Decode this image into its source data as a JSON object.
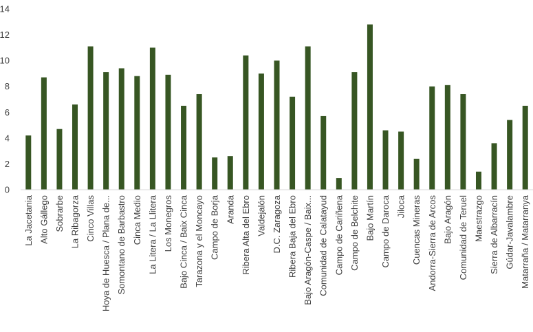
{
  "chart_data": {
    "type": "bar",
    "categories": [
      "La Jacetania",
      "Alto Gállego",
      "Sobrarbe",
      "La Ribagorza",
      "Cinco Villas",
      "Hoya de Huesca / Plana de...",
      "Somontano de Barbastro",
      "Cinca Medio",
      "La Litera / La Llitera",
      "Los Monegros",
      "Bajo Cinca / Baix Cinca",
      "Tarazona y el Moncayo",
      "Campo de Borja",
      "Aranda",
      "Ribera Alta del Ebro",
      "Valdejalón",
      "D.C. Zaragoza",
      "Ribera Baja del Ebro",
      "Bajo Aragón-Caspe / Baix...",
      "Comunidad de Calatayud",
      "Campo de Cariñena",
      "Campo de Belchite",
      "Bajo Martín",
      "Campo de Daroca",
      "Jiloca",
      "Cuencas Mineras",
      "Andorra-Sierra de Arcos",
      "Bajo Aragón",
      "Comunidad de Teruel",
      "Maestrazgo",
      "Sierra de Albarracín",
      "Gúdar-Javalambre",
      "Matarraña / Matarranya"
    ],
    "values": [
      4.2,
      8.7,
      4.7,
      6.6,
      11.1,
      9.1,
      9.4,
      8.8,
      11.0,
      8.9,
      6.5,
      7.4,
      2.5,
      2.6,
      10.4,
      9.0,
      10.0,
      7.2,
      11.1,
      5.7,
      0.9,
      9.1,
      12.8,
      4.6,
      4.5,
      2.4,
      8.0,
      8.1,
      7.4,
      1.4,
      3.6,
      5.4,
      6.5
    ],
    "ylim": [
      0,
      14
    ],
    "y_ticks": [
      "0",
      "2",
      "4",
      "6",
      "8",
      "10",
      "12",
      "14"
    ],
    "title": "",
    "xlabel": "",
    "ylabel": "",
    "grid": false,
    "legend": false,
    "bar_color": "#375623",
    "axis_color": "#d9d9d9",
    "text_color": "#404040"
  }
}
